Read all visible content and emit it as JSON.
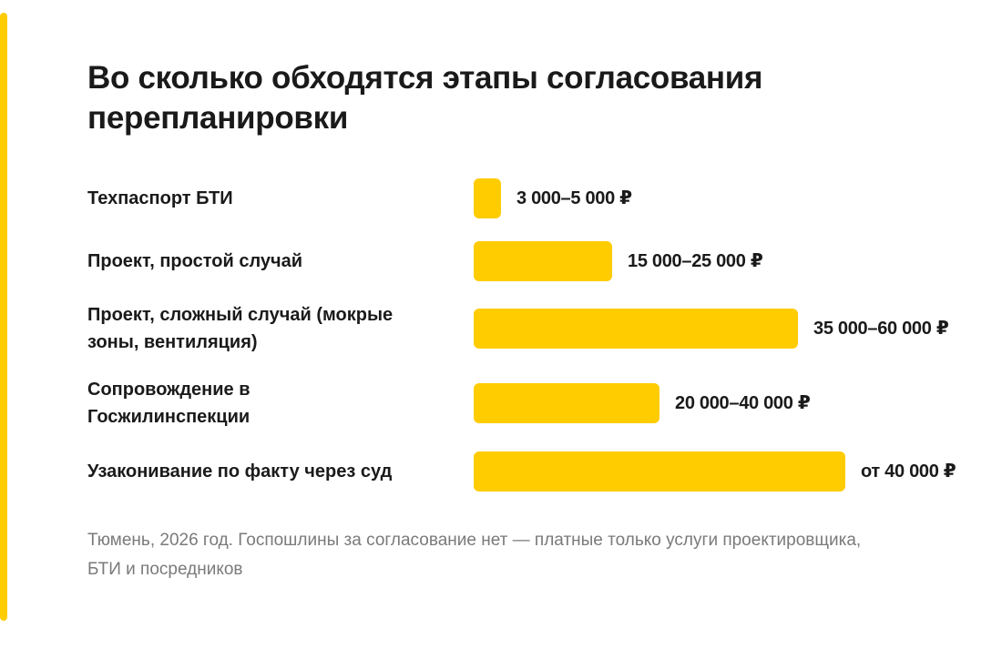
{
  "colors": {
    "accent": "#FFCC00",
    "bar": "#FFCC00",
    "text": "#1A1A1A",
    "muted": "#7A7A7A"
  },
  "title": "Во сколько обходятся этапы согласования перепланировки",
  "footnote": "Тюмень, 2026 год. Госпошлины за согласование нет — платные только услуги проектировщика, БТИ и посредников",
  "chart_data": {
    "type": "bar",
    "orientation": "horizontal",
    "title": "Во сколько обходятся этапы согласования перепланировки",
    "unit": "₽",
    "rows": [
      {
        "category": "Техпаспорт БТИ",
        "value_label": "3 000–5 000 ₽",
        "min": 3000,
        "max": 5000
      },
      {
        "category": "Проект, простой случай",
        "value_label": "15 000–25 000 ₽",
        "min": 15000,
        "max": 25000
      },
      {
        "category": "Проект, сложный случай (мокрые зоны, вентиляция)",
        "value_label": "35 000–60 000 ₽",
        "min": 35000,
        "max": 60000
      },
      {
        "category": "Сопровождение в Госжилинспекции",
        "value_label": "20 000–40 000 ₽",
        "min": 20000,
        "max": 40000
      },
      {
        "category": "Узаконивание по факту через суд",
        "value_label": "от 40 000 ₽",
        "min": 40000,
        "max": null
      }
    ],
    "bar_lengths_relative": [
      0.073,
      0.373,
      0.873,
      0.5,
      1.0
    ],
    "legend": "none",
    "grid": false
  }
}
